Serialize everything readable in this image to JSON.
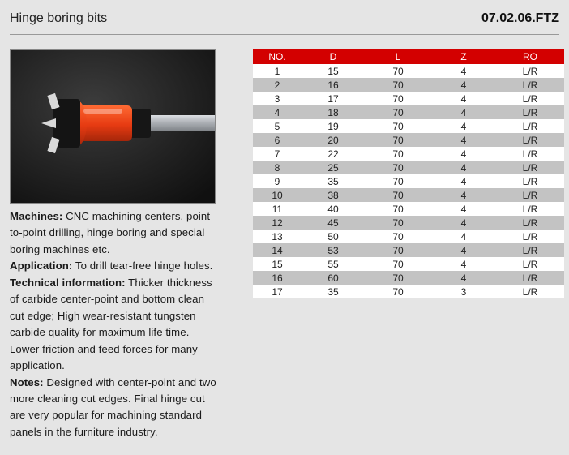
{
  "header": {
    "title": "Hinge boring bits",
    "code": "07.02.06.FTZ"
  },
  "description": {
    "machines_label": "Machines:",
    "machines_text": " CNC machining centers,   point -to-point drilling, hinge boring and special boring machines etc.",
    "application_label": "Application:",
    "application_text": " To drill tear-free hinge holes.",
    "technical_label": "Technical information:",
    "technical_text": " Thicker thickness of carbide center-point and bottom clean cut edge;  High wear-resistant tungsten carbide quality for maximum life time. Lower friction and feed forces for many application.",
    "notes_label": "Notes:",
    "notes_text": " Designed with center-point and two more cleaning cut edges. Final hinge cut are very popular for machining standard panels in the furniture industry."
  },
  "table": {
    "columns": [
      "NO.",
      "D",
      "L",
      "Z",
      "RO"
    ],
    "rows": [
      [
        "1",
        "15",
        "70",
        "4",
        "L/R"
      ],
      [
        "2",
        "16",
        "70",
        "4",
        "L/R"
      ],
      [
        "3",
        "17",
        "70",
        "4",
        "L/R"
      ],
      [
        "4",
        "18",
        "70",
        "4",
        "L/R"
      ],
      [
        "5",
        "19",
        "70",
        "4",
        "L/R"
      ],
      [
        "6",
        "20",
        "70",
        "4",
        "L/R"
      ],
      [
        "7",
        "22",
        "70",
        "4",
        "L/R"
      ],
      [
        "8",
        "25",
        "70",
        "4",
        "L/R"
      ],
      [
        "9",
        "35",
        "70",
        "4",
        "L/R"
      ],
      [
        "10",
        "38",
        "70",
        "4",
        "L/R"
      ],
      [
        "11",
        "40",
        "70",
        "4",
        "L/R"
      ],
      [
        "12",
        "45",
        "70",
        "4",
        "L/R"
      ],
      [
        "13",
        "50",
        "70",
        "4",
        "L/R"
      ],
      [
        "14",
        "53",
        "70",
        "4",
        "L/R"
      ],
      [
        "15",
        "55",
        "70",
        "4",
        "L/R"
      ],
      [
        "16",
        "60",
        "70",
        "4",
        "L/R"
      ],
      [
        "17",
        "35",
        "70",
        "3",
        "L/R"
      ]
    ],
    "header_bg": "#d30000",
    "header_fg": "#ffffff",
    "row_odd_bg": "#ffffff",
    "row_even_bg": "#c3c3c3"
  },
  "image": {
    "tool_body_color": "#e63b12",
    "tool_dark": "#1a1a1a",
    "tool_steel": "#b8bbbf",
    "tool_carbide": "#d9d9d9",
    "bg_dark": "#222222"
  }
}
